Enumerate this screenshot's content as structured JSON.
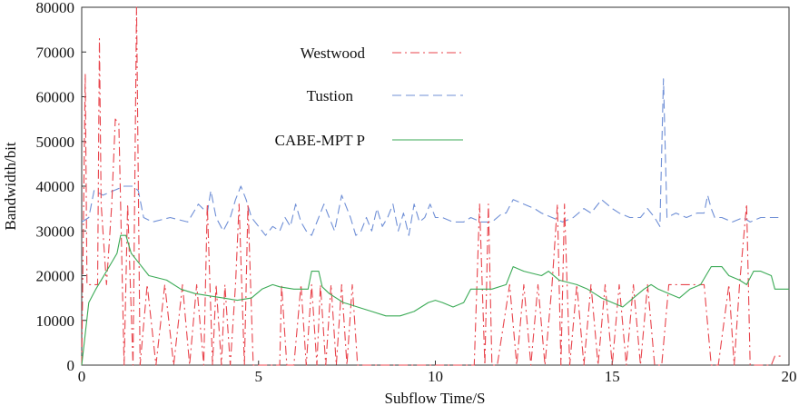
{
  "chart_data": {
    "type": "line",
    "title": "",
    "xlabel": "Subflow  Time/S",
    "ylabel": "Bandwidth/bit",
    "xlim": [
      0,
      20
    ],
    "ylim": [
      0,
      80000
    ],
    "x_ticks": [
      0,
      5,
      10,
      15,
      20
    ],
    "y_ticks": [
      0,
      10000,
      20000,
      30000,
      40000,
      50000,
      60000,
      70000,
      80000
    ],
    "grid": false,
    "legend_position": "upper-center",
    "series": [
      {
        "name": "Westwood",
        "color": "#e8434b",
        "style": "dash-dot",
        "points": [
          [
            0,
            0
          ],
          [
            0.1,
            65000
          ],
          [
            0.15,
            18000
          ],
          [
            0.3,
            18000
          ],
          [
            0.45,
            18000
          ],
          [
            0.5,
            73000
          ],
          [
            0.55,
            36000
          ],
          [
            0.7,
            18000
          ],
          [
            0.85,
            36000
          ],
          [
            0.95,
            55000
          ],
          [
            1.05,
            54000
          ],
          [
            1.2,
            0
          ],
          [
            1.3,
            36000
          ],
          [
            1.45,
            0
          ],
          [
            1.55,
            80000
          ],
          [
            1.65,
            0
          ],
          [
            1.85,
            18000
          ],
          [
            2.1,
            0
          ],
          [
            2.35,
            18000
          ],
          [
            2.6,
            0
          ],
          [
            2.85,
            18000
          ],
          [
            3.05,
            0
          ],
          [
            3.25,
            18000
          ],
          [
            3.45,
            0
          ],
          [
            3.55,
            36000
          ],
          [
            3.7,
            0
          ],
          [
            3.8,
            18000
          ],
          [
            3.95,
            0
          ],
          [
            4.05,
            18000
          ],
          [
            4.2,
            0
          ],
          [
            4.35,
            18000
          ],
          [
            4.45,
            36000
          ],
          [
            4.6,
            0
          ],
          [
            4.7,
            36000
          ],
          [
            4.85,
            0
          ],
          [
            5,
            0
          ],
          [
            5.6,
            0
          ],
          [
            5.65,
            18000
          ],
          [
            5.8,
            0
          ],
          [
            6.0,
            0
          ],
          [
            6.2,
            18000
          ],
          [
            6.35,
            0
          ],
          [
            6.5,
            18000
          ],
          [
            6.65,
            0
          ],
          [
            6.75,
            18000
          ],
          [
            6.9,
            0
          ],
          [
            7.05,
            18000
          ],
          [
            7.2,
            0
          ],
          [
            7.35,
            18000
          ],
          [
            7.5,
            0
          ],
          [
            7.65,
            18000
          ],
          [
            7.8,
            0
          ],
          [
            8.0,
            0
          ],
          [
            11.1,
            0
          ],
          [
            11.25,
            36000
          ],
          [
            11.4,
            0
          ],
          [
            11.5,
            36000
          ],
          [
            11.6,
            0
          ],
          [
            11.75,
            0
          ],
          [
            12.1,
            18000
          ],
          [
            12.3,
            0
          ],
          [
            12.5,
            18000
          ],
          [
            12.7,
            0
          ],
          [
            12.9,
            18000
          ],
          [
            13.1,
            0
          ],
          [
            13.3,
            18000
          ],
          [
            13.45,
            36000
          ],
          [
            13.55,
            0
          ],
          [
            13.65,
            36000
          ],
          [
            13.8,
            0
          ],
          [
            14.0,
            18000
          ],
          [
            14.2,
            0
          ],
          [
            14.4,
            18000
          ],
          [
            14.6,
            0
          ],
          [
            14.8,
            18000
          ],
          [
            15.0,
            0
          ],
          [
            15.2,
            18000
          ],
          [
            15.4,
            0
          ],
          [
            15.6,
            18000
          ],
          [
            15.8,
            0
          ],
          [
            16.0,
            18000
          ],
          [
            16.2,
            0
          ],
          [
            16.4,
            0
          ],
          [
            16.6,
            18000
          ],
          [
            17.6,
            18000
          ],
          [
            17.8,
            0
          ],
          [
            18.0,
            0
          ],
          [
            18.3,
            18000
          ],
          [
            18.45,
            0
          ],
          [
            18.6,
            18000
          ],
          [
            18.8,
            36000
          ],
          [
            18.9,
            0
          ],
          [
            19.1,
            0
          ],
          [
            19.5,
            0
          ],
          [
            19.6,
            2000
          ],
          [
            19.8,
            2000
          ]
        ]
      },
      {
        "name": "Tustion",
        "color": "#6f8fd6",
        "style": "dashed",
        "points": [
          [
            0,
            32000
          ],
          [
            0.2,
            33000
          ],
          [
            0.35,
            39000
          ],
          [
            0.6,
            38000
          ],
          [
            0.9,
            39000
          ],
          [
            1.2,
            40000
          ],
          [
            1.45,
            40000
          ],
          [
            1.6,
            39000
          ],
          [
            1.75,
            33000
          ],
          [
            2.0,
            32000
          ],
          [
            2.5,
            33000
          ],
          [
            3.0,
            32000
          ],
          [
            3.3,
            36000
          ],
          [
            3.55,
            34000
          ],
          [
            3.65,
            39000
          ],
          [
            3.8,
            33000
          ],
          [
            4.0,
            30000
          ],
          [
            4.2,
            33000
          ],
          [
            4.35,
            37000
          ],
          [
            4.5,
            40000
          ],
          [
            4.65,
            37000
          ],
          [
            4.8,
            33000
          ],
          [
            5.0,
            31000
          ],
          [
            5.2,
            29000
          ],
          [
            5.4,
            31000
          ],
          [
            5.6,
            30000
          ],
          [
            5.75,
            33000
          ],
          [
            5.9,
            31000
          ],
          [
            6.05,
            36000
          ],
          [
            6.2,
            32000
          ],
          [
            6.35,
            30000
          ],
          [
            6.5,
            29000
          ],
          [
            6.7,
            33000
          ],
          [
            6.85,
            36000
          ],
          [
            7.0,
            33000
          ],
          [
            7.15,
            30000
          ],
          [
            7.35,
            38000
          ],
          [
            7.5,
            35000
          ],
          [
            7.6,
            33000
          ],
          [
            7.75,
            29000
          ],
          [
            7.9,
            30000
          ],
          [
            8.05,
            33000
          ],
          [
            8.2,
            30000
          ],
          [
            8.35,
            35000
          ],
          [
            8.5,
            31000
          ],
          [
            8.65,
            33000
          ],
          [
            8.8,
            36000
          ],
          [
            8.95,
            30000
          ],
          [
            9.1,
            34000
          ],
          [
            9.25,
            29000
          ],
          [
            9.4,
            36000
          ],
          [
            9.55,
            32000
          ],
          [
            9.7,
            33000
          ],
          [
            9.85,
            36000
          ],
          [
            10.0,
            33000
          ],
          [
            10.2,
            33000
          ],
          [
            10.5,
            32000
          ],
          [
            10.8,
            32000
          ],
          [
            11.0,
            33000
          ],
          [
            11.3,
            32000
          ],
          [
            11.6,
            32000
          ],
          [
            11.9,
            34000
          ],
          [
            12.0,
            34000
          ],
          [
            12.2,
            37000
          ],
          [
            12.5,
            36000
          ],
          [
            12.8,
            35000
          ],
          [
            13.0,
            34000
          ],
          [
            13.3,
            33000
          ],
          [
            13.6,
            32000
          ],
          [
            13.9,
            33000
          ],
          [
            14.2,
            35000
          ],
          [
            14.4,
            34000
          ],
          [
            14.7,
            37000
          ],
          [
            15.0,
            35000
          ],
          [
            15.2,
            34000
          ],
          [
            15.5,
            33000
          ],
          [
            15.8,
            33000
          ],
          [
            16.0,
            35000
          ],
          [
            16.2,
            33000
          ],
          [
            16.35,
            31000
          ],
          [
            16.45,
            64000
          ],
          [
            16.55,
            33000
          ],
          [
            16.8,
            34000
          ],
          [
            17.1,
            33000
          ],
          [
            17.4,
            34000
          ],
          [
            17.6,
            34000
          ],
          [
            17.7,
            38000
          ],
          [
            17.8,
            35000
          ],
          [
            17.9,
            33000
          ],
          [
            18.1,
            33000
          ],
          [
            18.4,
            32000
          ],
          [
            18.7,
            33000
          ],
          [
            18.9,
            32000
          ],
          [
            19.2,
            33000
          ],
          [
            19.5,
            33000
          ],
          [
            19.7,
            33000
          ]
        ]
      },
      {
        "name": "CABE-MPT P",
        "color": "#3aaa55",
        "style": "solid",
        "points": [
          [
            0,
            0
          ],
          [
            0.2,
            14000
          ],
          [
            0.4,
            17000
          ],
          [
            0.7,
            21000
          ],
          [
            1.0,
            25000
          ],
          [
            1.1,
            29000
          ],
          [
            1.25,
            29000
          ],
          [
            1.4,
            25000
          ],
          [
            1.6,
            23000
          ],
          [
            1.9,
            20000
          ],
          [
            2.4,
            19000
          ],
          [
            2.8,
            17000
          ],
          [
            3.2,
            16000
          ],
          [
            3.6,
            15500
          ],
          [
            4.0,
            15000
          ],
          [
            4.4,
            14500
          ],
          [
            4.8,
            15000
          ],
          [
            5.1,
            17000
          ],
          [
            5.4,
            18000
          ],
          [
            5.6,
            17500
          ],
          [
            6.0,
            17000
          ],
          [
            6.4,
            17000
          ],
          [
            6.5,
            21000
          ],
          [
            6.7,
            21000
          ],
          [
            6.8,
            17500
          ],
          [
            7.0,
            16000
          ],
          [
            7.4,
            14000
          ],
          [
            7.8,
            13000
          ],
          [
            8.2,
            12000
          ],
          [
            8.6,
            11000
          ],
          [
            9.0,
            11000
          ],
          [
            9.4,
            12000
          ],
          [
            9.6,
            13000
          ],
          [
            9.8,
            14000
          ],
          [
            10.0,
            14500
          ],
          [
            10.2,
            14000
          ],
          [
            10.5,
            13000
          ],
          [
            10.8,
            14000
          ],
          [
            11.0,
            17000
          ],
          [
            11.4,
            17000
          ],
          [
            11.6,
            17000
          ],
          [
            12.0,
            18000
          ],
          [
            12.2,
            22000
          ],
          [
            12.5,
            21000
          ],
          [
            13.0,
            20000
          ],
          [
            13.2,
            21000
          ],
          [
            13.5,
            19000
          ],
          [
            14.0,
            18000
          ],
          [
            14.3,
            17000
          ],
          [
            14.5,
            16000
          ],
          [
            14.7,
            15000
          ],
          [
            15.0,
            14000
          ],
          [
            15.3,
            13000
          ],
          [
            15.6,
            15000
          ],
          [
            15.9,
            17000
          ],
          [
            16.1,
            18000
          ],
          [
            16.3,
            17000
          ],
          [
            16.6,
            16000
          ],
          [
            16.9,
            15000
          ],
          [
            17.2,
            17000
          ],
          [
            17.5,
            18000
          ],
          [
            17.8,
            22000
          ],
          [
            18.1,
            22000
          ],
          [
            18.3,
            20000
          ],
          [
            18.6,
            19000
          ],
          [
            18.8,
            18000
          ],
          [
            19.0,
            21000
          ],
          [
            19.2,
            21000
          ],
          [
            19.5,
            20000
          ],
          [
            19.6,
            17000
          ],
          [
            20,
            17000
          ]
        ]
      }
    ]
  }
}
